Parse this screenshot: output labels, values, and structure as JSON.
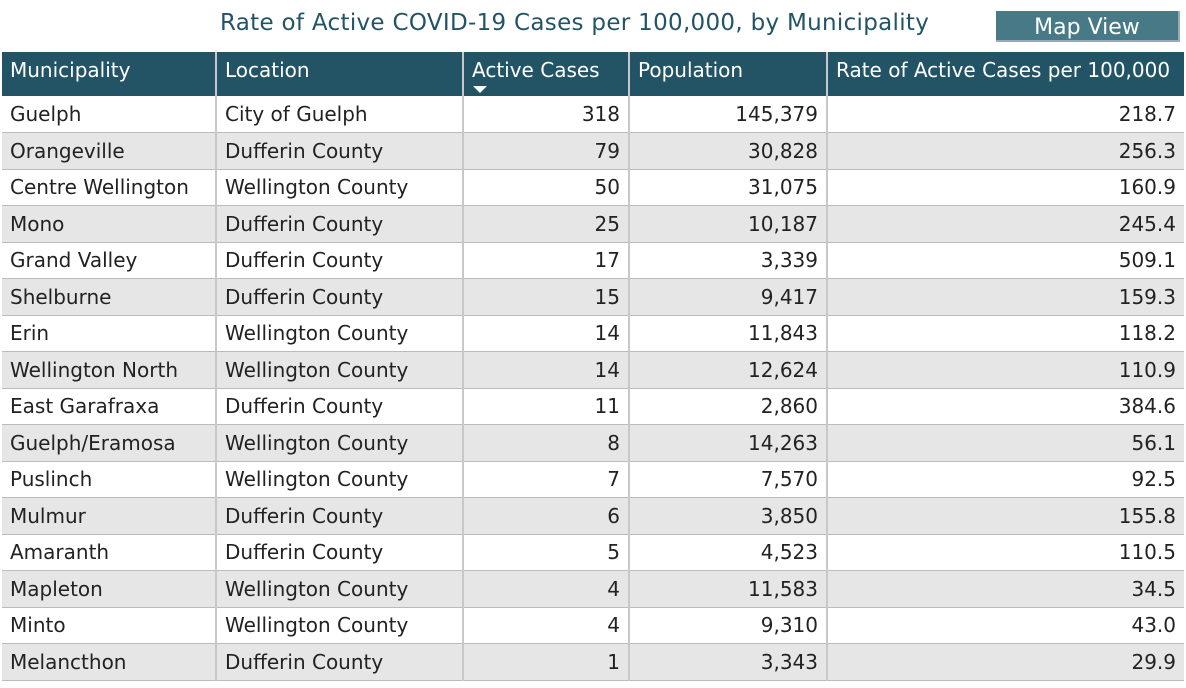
{
  "title": "Rate of Active COVID-19 Cases per 100,000, by Municipality",
  "map_view_button": "Map View",
  "columns": [
    "Municipality",
    "Location",
    "Active Cases",
    "Population",
    "Rate of Active Cases per 100,000"
  ],
  "sort": {
    "column": "Active Cases",
    "direction": "descending",
    "icon": "sort-down-icon"
  },
  "colors": {
    "header": "#235466",
    "button": "#477a86",
    "alt_row": "#e6e6e6"
  },
  "rows": [
    [
      "Guelph",
      "City of Guelph",
      "318",
      "145,379",
      "218.7"
    ],
    [
      "Orangeville",
      "Dufferin County",
      "79",
      "30,828",
      "256.3"
    ],
    [
      "Centre Wellington",
      "Wellington County",
      "50",
      "31,075",
      "160.9"
    ],
    [
      "Mono",
      "Dufferin County",
      "25",
      "10,187",
      "245.4"
    ],
    [
      "Grand Valley",
      "Dufferin County",
      "17",
      "3,339",
      "509.1"
    ],
    [
      "Shelburne",
      "Dufferin County",
      "15",
      "9,417",
      "159.3"
    ],
    [
      "Erin",
      "Wellington County",
      "14",
      "11,843",
      "118.2"
    ],
    [
      "Wellington North",
      "Wellington County",
      "14",
      "12,624",
      "110.9"
    ],
    [
      "East Garafraxa",
      "Dufferin County",
      "11",
      "2,860",
      "384.6"
    ],
    [
      "Guelph/Eramosa",
      "Wellington County",
      "8",
      "14,263",
      "56.1"
    ],
    [
      "Puslinch",
      "Wellington County",
      "7",
      "7,570",
      "92.5"
    ],
    [
      "Mulmur",
      "Dufferin County",
      "6",
      "3,850",
      "155.8"
    ],
    [
      "Amaranth",
      "Dufferin County",
      "5",
      "4,523",
      "110.5"
    ],
    [
      "Mapleton",
      "Wellington County",
      "4",
      "11,583",
      "34.5"
    ],
    [
      "Minto",
      "Wellington County",
      "4",
      "9,310",
      "43.0"
    ],
    [
      "Melancthon",
      "Dufferin County",
      "1",
      "3,343",
      "29.9"
    ]
  ]
}
